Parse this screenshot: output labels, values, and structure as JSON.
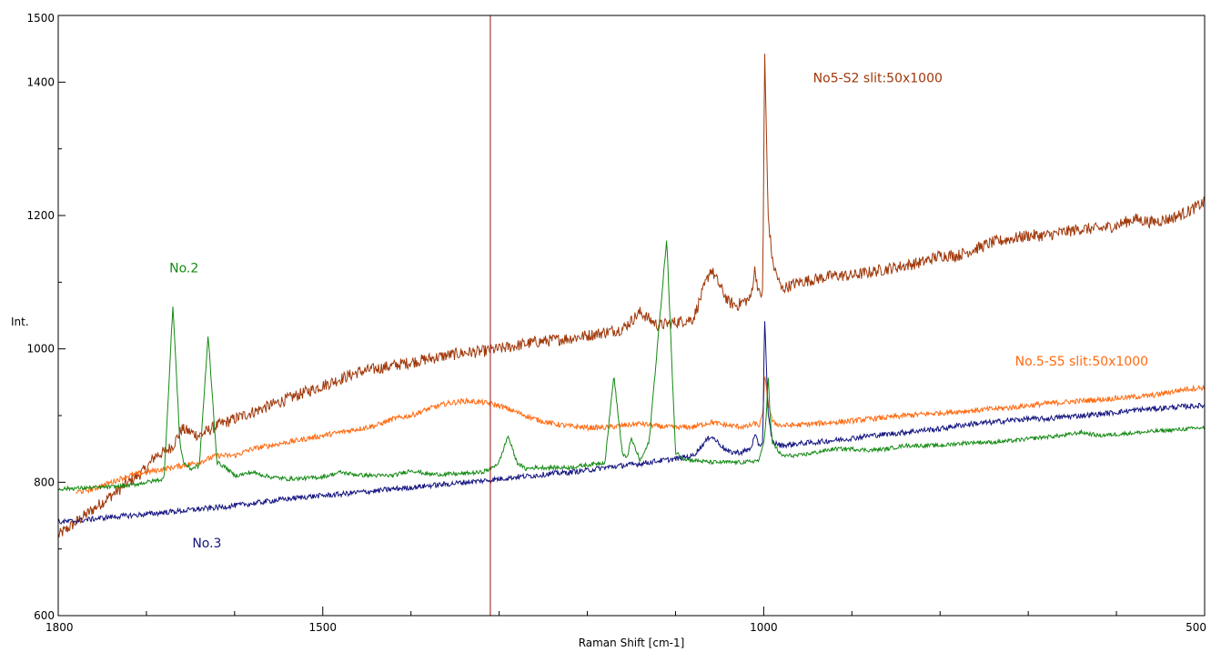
{
  "chart_data": {
    "type": "line",
    "title": "",
    "xlabel": "Raman Shift [cm-1]",
    "ylabel": "Int.",
    "xlim": [
      1800,
      500
    ],
    "ylim": [
      600,
      1500
    ],
    "x_reversed": true,
    "x_ticks": [
      1800,
      1500,
      1000,
      500
    ],
    "x_minor_ticks": [
      1700,
      1600,
      1400,
      1300,
      1200,
      1100,
      900,
      800,
      700,
      600
    ],
    "y_ticks": [
      600,
      800,
      1000,
      1200,
      1400,
      1500
    ],
    "y_minor_ticks": [
      700,
      900,
      1100,
      1300
    ],
    "grid": false,
    "marker_line": {
      "x": 1310,
      "color": "#a01010"
    },
    "series": [
      {
        "name": "No5-S2 slit:50x1000",
        "color": "#a0380a",
        "noise": 9,
        "x": [
          1800,
          1780,
          1750,
          1720,
          1700,
          1690,
          1680,
          1670,
          1660,
          1650,
          1640,
          1620,
          1600,
          1580,
          1560,
          1540,
          1520,
          1500,
          1480,
          1460,
          1440,
          1420,
          1400,
          1380,
          1360,
          1340,
          1320,
          1310,
          1300,
          1280,
          1260,
          1240,
          1220,
          1200,
          1180,
          1160,
          1140,
          1120,
          1100,
          1080,
          1060,
          1040,
          1030,
          1025,
          1015,
          1010,
          1005,
          1001,
          999,
          995,
          990,
          980,
          970,
          960,
          940,
          920,
          900,
          880,
          860,
          840,
          820,
          800,
          780,
          760,
          740,
          720,
          700,
          680,
          660,
          640,
          620,
          600,
          580,
          560,
          540,
          520,
          500
        ],
        "y": [
          720,
          740,
          770,
          800,
          820,
          840,
          845,
          855,
          880,
          875,
          870,
          885,
          895,
          905,
          915,
          925,
          935,
          945,
          955,
          965,
          970,
          975,
          980,
          985,
          990,
          994,
          996,
          998,
          1000,
          1005,
          1010,
          1013,
          1016,
          1020,
          1025,
          1030,
          1055,
          1035,
          1040,
          1045,
          1120,
          1070,
          1065,
          1070,
          1075,
          1120,
          1080,
          1085,
          1450,
          1200,
          1130,
          1090,
          1095,
          1100,
          1105,
          1110,
          1110,
          1115,
          1120,
          1125,
          1130,
          1140,
          1140,
          1150,
          1160,
          1165,
          1170,
          1170,
          1175,
          1180,
          1180,
          1185,
          1195,
          1190,
          1195,
          1205,
          1220
        ]
      },
      {
        "name": "No.5-S5 slit:50x1000",
        "color": "#ff6a10",
        "noise": 4,
        "x": [
          1780,
          1760,
          1740,
          1720,
          1700,
          1680,
          1660,
          1640,
          1620,
          1600,
          1580,
          1560,
          1540,
          1520,
          1500,
          1480,
          1460,
          1440,
          1420,
          1400,
          1380,
          1360,
          1340,
          1320,
          1300,
          1280,
          1260,
          1240,
          1220,
          1200,
          1180,
          1160,
          1140,
          1120,
          1100,
          1080,
          1060,
          1040,
          1020,
          1010,
          1005,
          1001,
          999,
          995,
          990,
          980,
          960,
          940,
          920,
          900,
          880,
          860,
          840,
          820,
          800,
          780,
          760,
          740,
          720,
          700,
          680,
          660,
          640,
          620,
          600,
          580,
          560,
          540,
          520,
          500
        ],
        "y": [
          785,
          790,
          800,
          810,
          815,
          820,
          825,
          830,
          840,
          840,
          850,
          855,
          860,
          865,
          870,
          875,
          880,
          885,
          895,
          900,
          910,
          918,
          922,
          920,
          915,
          905,
          895,
          888,
          884,
          882,
          882,
          885,
          888,
          884,
          882,
          883,
          890,
          885,
          883,
          888,
          885,
          900,
          960,
          920,
          890,
          885,
          886,
          888,
          890,
          892,
          895,
          897,
          900,
          902,
          904,
          906,
          908,
          910,
          912,
          915,
          918,
          920,
          922,
          924,
          926,
          928,
          930,
          935,
          940,
          942
        ]
      },
      {
        "name": "No.3",
        "color": "#141480",
        "noise": 4,
        "x": [
          1800,
          1780,
          1760,
          1740,
          1720,
          1700,
          1680,
          1660,
          1640,
          1620,
          1600,
          1580,
          1560,
          1540,
          1520,
          1500,
          1480,
          1460,
          1440,
          1420,
          1400,
          1380,
          1360,
          1340,
          1320,
          1300,
          1280,
          1260,
          1240,
          1220,
          1200,
          1180,
          1160,
          1140,
          1120,
          1100,
          1080,
          1060,
          1040,
          1025,
          1015,
          1010,
          1005,
          1001,
          999,
          995,
          990,
          980,
          960,
          940,
          920,
          900,
          880,
          860,
          840,
          820,
          800,
          780,
          760,
          740,
          720,
          700,
          680,
          660,
          640,
          620,
          600,
          580,
          560,
          540,
          520,
          500
        ],
        "y": [
          740,
          742,
          745,
          748,
          750,
          752,
          755,
          757,
          760,
          762,
          765,
          768,
          772,
          775,
          778,
          780,
          782,
          785,
          787,
          790,
          792,
          795,
          797,
          800,
          802,
          805,
          808,
          810,
          813,
          815,
          818,
          822,
          825,
          828,
          832,
          835,
          840,
          870,
          845,
          845,
          850,
          870,
          855,
          860,
          1050,
          900,
          860,
          855,
          858,
          860,
          863,
          866,
          870,
          872,
          875,
          878,
          880,
          885,
          888,
          890,
          893,
          895,
          895,
          898,
          900,
          902,
          905,
          908,
          910,
          912,
          914,
          915
        ]
      },
      {
        "name": "No.2",
        "color": "#148a14",
        "noise": 3,
        "x": [
          1800,
          1780,
          1760,
          1740,
          1720,
          1700,
          1680,
          1670,
          1662,
          1658,
          1650,
          1640,
          1630,
          1620,
          1610,
          1600,
          1590,
          1580,
          1560,
          1540,
          1520,
          1500,
          1480,
          1460,
          1440,
          1420,
          1400,
          1380,
          1360,
          1340,
          1320,
          1310,
          1300,
          1290,
          1280,
          1270,
          1260,
          1250,
          1240,
          1220,
          1200,
          1180,
          1170,
          1160,
          1155,
          1150,
          1140,
          1130,
          1110,
          1100,
          1090,
          1080,
          1060,
          1040,
          1020,
          1005,
          1000,
          997,
          995,
          992,
          990,
          980,
          960,
          940,
          920,
          900,
          880,
          860,
          840,
          820,
          800,
          780,
          760,
          740,
          720,
          700,
          680,
          660,
          640,
          620,
          600,
          580,
          560,
          540,
          520,
          500
        ],
        "y": [
          790,
          791,
          792,
          793,
          795,
          800,
          805,
          1065,
          860,
          830,
          820,
          825,
          1020,
          830,
          822,
          810,
          812,
          815,
          808,
          805,
          806,
          808,
          815,
          811,
          810,
          810,
          818,
          812,
          812,
          813,
          815,
          820,
          830,
          870,
          830,
          820,
          822,
          822,
          822,
          822,
          826,
          830,
          960,
          840,
          838,
          865,
          832,
          860,
          1165,
          845,
          835,
          833,
          830,
          830,
          830,
          833,
          860,
          900,
          960,
          880,
          860,
          840,
          840,
          845,
          850,
          850,
          848,
          850,
          855,
          855,
          855,
          858,
          860,
          860,
          862,
          865,
          868,
          870,
          875,
          870,
          872,
          874,
          876,
          878,
          880,
          882
        ]
      }
    ],
    "annotations": [
      {
        "text": "No5-S2 slit:50x1000",
        "series": 0,
        "x": 944,
        "y": 1400
      },
      {
        "text": "No.5-S5 slit:50x1000",
        "series": 1,
        "x": 715,
        "y": 975
      },
      {
        "text": "No.2",
        "series": 3,
        "x": 1674,
        "y": 1115
      },
      {
        "text": "No.3",
        "series": 2,
        "x": 1648,
        "y": 702
      }
    ]
  }
}
